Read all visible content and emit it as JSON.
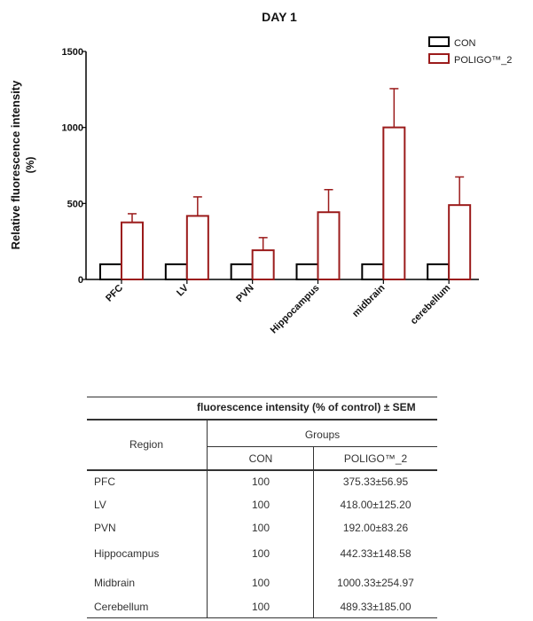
{
  "chart_data": {
    "type": "bar",
    "title": "DAY 1",
    "ylabel_line1": "Relative fluorescence intensity",
    "ylabel_line2": "(%)",
    "ylim": [
      0,
      1500
    ],
    "yticks": [
      "0",
      "500",
      "1000",
      "1500"
    ],
    "ytick_values": [
      0,
      500,
      1000,
      1500
    ],
    "categories": [
      "PFC",
      "LV",
      "PVN",
      "Hippocampus",
      "midbrain",
      "cerebellum"
    ],
    "series": [
      {
        "name": "CON",
        "values": [
          100,
          100,
          100,
          100,
          100,
          100
        ],
        "errors": [
          0,
          0,
          0,
          0,
          0,
          0
        ],
        "color": "#000000"
      },
      {
        "name": "POLIGO™_2",
        "values": [
          375.33,
          418.0,
          192.0,
          442.33,
          1000.33,
          489.33
        ],
        "errors": [
          56.95,
          125.2,
          83.26,
          148.58,
          254.97,
          185.0
        ],
        "color": "#9b1b1b"
      }
    ],
    "legend_position": "top-right",
    "grid": false
  },
  "table": {
    "header": "fluorescence intensity (% of control) ± SEM",
    "region_label": "Region",
    "groups_label": "Groups",
    "col_con": "CON",
    "col_poligo": "POLIGO™_2",
    "rows": [
      {
        "region": "PFC",
        "con": "100",
        "poligo": "375.33±56.95"
      },
      {
        "region": "LV",
        "con": "100",
        "poligo": "418.00±125.20"
      },
      {
        "region": "PVN",
        "con": "100",
        "poligo": "192.00±83.26"
      },
      {
        "region": "Hippocampus",
        "con": "100",
        "poligo": "442.33±148.58"
      },
      {
        "region": "Midbrain",
        "con": "100",
        "poligo": "1000.33±254.97"
      },
      {
        "region": "Cerebellum",
        "con": "100",
        "poligo": "489.33±185.00"
      }
    ]
  }
}
